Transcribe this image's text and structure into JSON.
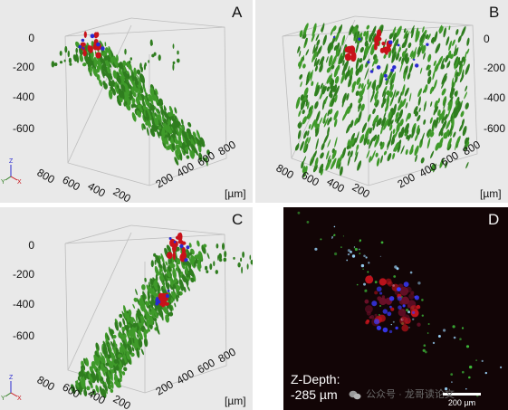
{
  "panels": [
    {
      "id": "A",
      "letter": "A",
      "z_ticks": [
        "0",
        "-200",
        "-400",
        "-600"
      ],
      "x_ticks": [
        "800",
        "600",
        "400",
        "200"
      ],
      "y_ticks": [
        "200",
        "400",
        "600",
        "800"
      ],
      "unit": "[µm]"
    },
    {
      "id": "B",
      "letter": "B",
      "z_ticks": [
        "0",
        "-200",
        "-400",
        "-600"
      ],
      "x_ticks": [
        "800",
        "600",
        "400",
        "200"
      ],
      "y_ticks": [
        "200",
        "400",
        "600",
        "800"
      ],
      "unit": "[µm]"
    },
    {
      "id": "C",
      "letter": "C",
      "z_ticks": [
        "0",
        "-200",
        "-400",
        "-600"
      ],
      "x_ticks": [
        "800",
        "600",
        "400",
        "200"
      ],
      "y_ticks": [
        "200",
        "400",
        "600",
        "800"
      ],
      "unit": "[µm]"
    }
  ],
  "panel_d": {
    "letter": "D",
    "depth_label": "Z-Depth:",
    "depth_value": "-285 µm",
    "scale_label": "200 µm"
  },
  "axis_triad": {
    "z": "Z",
    "y": "Y",
    "x": "X"
  },
  "watermark": "公众号 · 龙哥读论文",
  "colors": {
    "green": "#2f7d1f",
    "red": "#c8121a",
    "blue": "#2a2ad0",
    "panel_bg": "#e9e9e9",
    "dark_bg": "#120506"
  }
}
